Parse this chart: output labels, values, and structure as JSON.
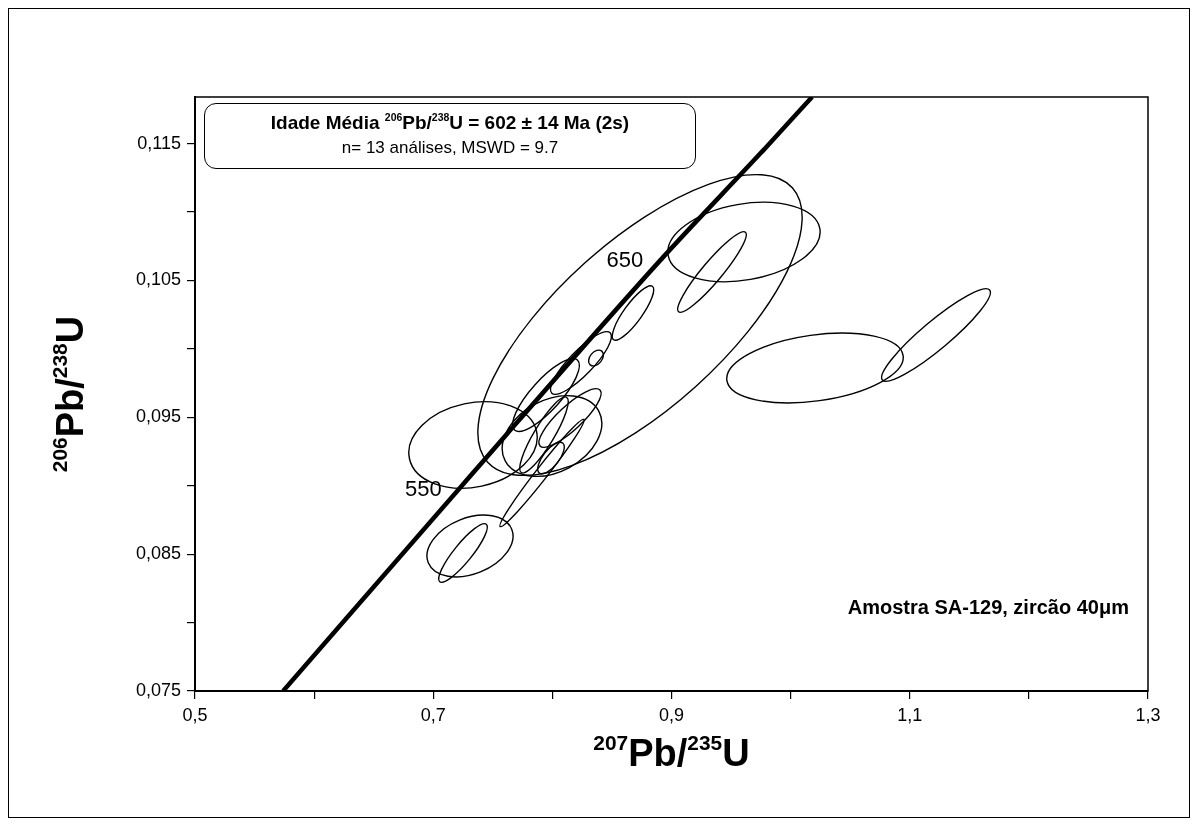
{
  "chart_data": {
    "type": "line",
    "xlabel": "$^{207}$Pb/$^{235}$U",
    "ylabel": "$^{206}$Pb/$^{238}$U",
    "legend": false,
    "xlim": [
      0.5,
      1.3
    ],
    "ylim": [
      0.075,
      0.1184
    ],
    "xticks": [
      {
        "value": 0.5,
        "label": "0,5"
      },
      {
        "value": 0.6,
        "label": null
      },
      {
        "value": 0.7,
        "label": "0,7"
      },
      {
        "value": 0.8,
        "label": null
      },
      {
        "value": 0.9,
        "label": "0,9"
      },
      {
        "value": 1.0,
        "label": null
      },
      {
        "value": 1.1,
        "label": "1,1"
      },
      {
        "value": 1.2,
        "label": null
      },
      {
        "value": 1.3,
        "label": "1,3"
      }
    ],
    "yticks": [
      {
        "value": 0.075,
        "label": "0,075"
      },
      {
        "value": 0.08,
        "label": null
      },
      {
        "value": 0.085,
        "label": "0,085"
      },
      {
        "value": 0.09,
        "label": null
      },
      {
        "value": 0.095,
        "label": "0,095"
      },
      {
        "value": 0.1,
        "label": null
      },
      {
        "value": 0.105,
        "label": "0,105"
      },
      {
        "value": 0.11,
        "label": null
      },
      {
        "value": 0.115,
        "label": "0,115"
      }
    ],
    "annotations": [
      "Idade Média $^{206}$Pb/$^{238}$U  = 602 ± 14  Ma (2s)",
      "n= 13 análises, MSWD = 9.7",
      "Amostra SA-129, zircão 40μm",
      {
        "text": "550",
        "x": 0.724,
        "y": 0.09
      },
      {
        "text": "650",
        "x": 0.893,
        "y": 0.1067
      }
    ],
    "series": [
      {
        "color": "#000000",
        "x": [
          0.574,
          0.724,
          0.893,
          0.977,
          1.018
        ],
        "values": [
          0.075,
          0.09,
          0.1067,
          0.1145,
          0.1184
        ]
      }
    ]
  }
}
